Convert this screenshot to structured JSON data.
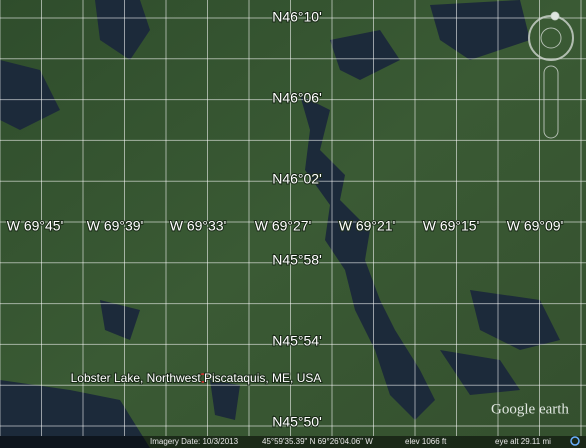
{
  "map": {
    "latitude_labels": [
      "N46°10'",
      "N46°06'",
      "N46°02'",
      "N45°58'",
      "N45°54'",
      "N45°50'"
    ],
    "longitude_labels": [
      "W 69°45'",
      "W 69°39'",
      "W 69°33'",
      "W 69°27'",
      "W 69°21'",
      "W 69°15'",
      "W 69°09'"
    ],
    "place_label": "Lobster Lake, Northwest Piscataquis, ME, USA",
    "logo": "Google earth",
    "status_bar": {
      "imagery_date": "Imagery Date: 10/3/2013",
      "coordinates": "45°59'35.39\" N   69°26'04.06\" W",
      "elevation": "elev  1066 ft",
      "eye_altitude": "eye alt  29.11 mi"
    }
  }
}
